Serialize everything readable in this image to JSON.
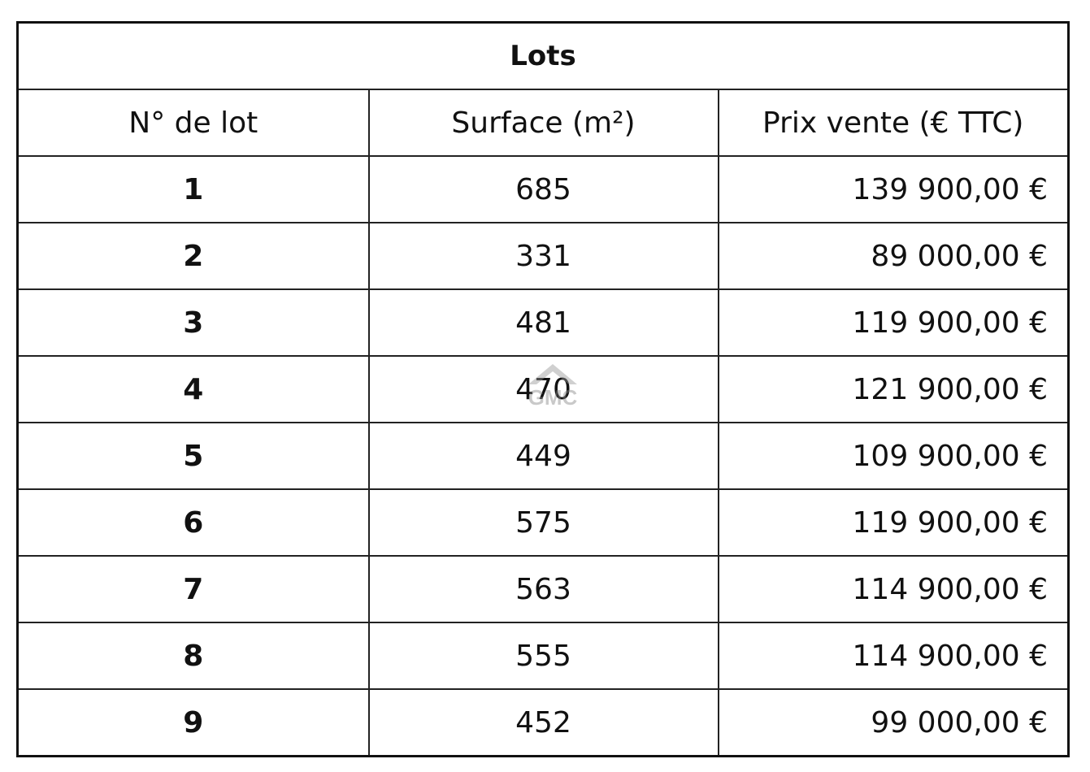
{
  "title": "Lots",
  "columns": [
    "N° de lot",
    "Surface (m²)",
    "Prix vente (€ TTC)"
  ],
  "rows": [
    [
      "1",
      "685",
      "139 900,00 €"
    ],
    [
      "2",
      "331",
      "89 000,00 €"
    ],
    [
      "3",
      "481",
      "119 900,00 €"
    ],
    [
      "4",
      "470",
      "121 900,00 €"
    ],
    [
      "5",
      "449",
      "109 900,00 €"
    ],
    [
      "6",
      "575",
      "119 900,00 €"
    ],
    [
      "7",
      "563",
      "114 900,00 €"
    ],
    [
      "8",
      "555",
      "114 900,00 €"
    ],
    [
      "9",
      "452",
      "99 000,00 €"
    ]
  ],
  "watermark": "GMC"
}
